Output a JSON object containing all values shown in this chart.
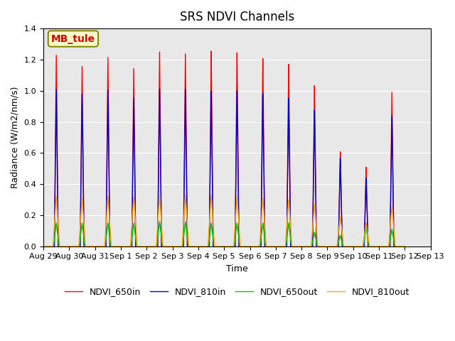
{
  "title": "SRS NDVI Channels",
  "xlabel": "Time",
  "ylabel": "Radiance (W/m2/nm/s)",
  "ylim": [
    0,
    1.4
  ],
  "annotation_text": "MB_tule",
  "x_tick_labels": [
    "Aug 29",
    "Aug 30",
    "Aug 31",
    "Sep 1",
    "Sep 2",
    "Sep 3",
    "Sep 4",
    "Sep 5",
    "Sep 6",
    "Sep 7",
    "Sep 8",
    "Sep 9",
    "Sep 10",
    "Sep 11",
    "Sep 12",
    "Sep 13"
  ],
  "line_colors": {
    "NDVI_650in": "#ff0000",
    "NDVI_810in": "#0000cc",
    "NDVI_650out": "#00cc00",
    "NDVI_810out": "#ffaa00"
  },
  "peak_650in": [
    1.23,
    1.16,
    1.22,
    1.15,
    1.26,
    1.25,
    1.27,
    1.26,
    1.22,
    1.18,
    1.04,
    0.61,
    0.51,
    0.99
  ],
  "peak_810in": [
    1.01,
    0.98,
    1.01,
    0.96,
    1.02,
    1.02,
    1.01,
    1.01,
    0.99,
    0.96,
    0.88,
    0.57,
    0.44,
    0.84
  ],
  "peak_650out": [
    0.15,
    0.15,
    0.15,
    0.15,
    0.16,
    0.16,
    0.15,
    0.15,
    0.15,
    0.15,
    0.09,
    0.07,
    0.12,
    0.11
  ],
  "peak_810out": [
    0.32,
    0.31,
    0.32,
    0.32,
    0.33,
    0.33,
    0.33,
    0.32,
    0.31,
    0.3,
    0.27,
    0.19,
    0.15,
    0.26
  ],
  "n_days": 14,
  "background_color": "#e8e8e8",
  "figure_background": "#ffffff",
  "grid_color": "#ffffff",
  "title_fontsize": 12,
  "label_fontsize": 9,
  "tick_fontsize": 8,
  "legend_fontsize": 9,
  "linewidth": 1.0
}
